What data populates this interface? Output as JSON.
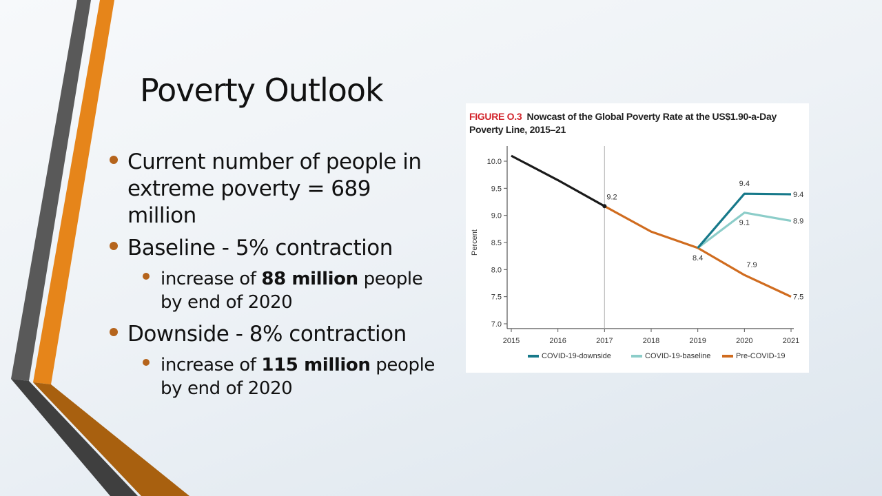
{
  "slide": {
    "title": "Poverty Outlook",
    "bullets": [
      {
        "level": 1,
        "text": "Current number of people in extreme poverty = 689 million"
      },
      {
        "level": 1,
        "text": "Baseline - 5% contraction"
      },
      {
        "level": 2,
        "pre": "increase of ",
        "bold": "88 million",
        "post": " people by end of 2020"
      },
      {
        "level": 1,
        "text": "Downside - 8% contraction"
      },
      {
        "level": 2,
        "pre": "increase of ",
        "bold": "115 million",
        "post": " people by end of 2020"
      }
    ],
    "colors": {
      "accent_orange": "#e6851a",
      "accent_dark_orange": "#a8600f",
      "accent_gray": "#595959",
      "accent_dark_gray": "#3f3f3f",
      "bullet": "#b5641c"
    }
  },
  "chart_data": {
    "type": "line",
    "figure_label": "FIGURE O.3",
    "title": "Nowcast of the Global Poverty Rate at the US$1.90-a-Day Poverty Line, 2015–21",
    "xlabel": "",
    "ylabel": "Percent",
    "x": [
      2015,
      2016,
      2017,
      2018,
      2019,
      2020,
      2021
    ],
    "x_tick_labels": [
      "2015",
      "2016",
      "2017",
      "2018",
      "2019",
      "2020",
      "2021"
    ],
    "y_ticks": [
      7.0,
      7.5,
      8.0,
      8.5,
      9.0,
      9.5,
      10.0
    ],
    "y_tick_labels": [
      "7.0",
      "7.5",
      "8.0",
      "8.5",
      "9.0",
      "9.5",
      "10.0"
    ],
    "ylim": [
      6.9,
      10.2
    ],
    "xlim": [
      2015,
      2021
    ],
    "grid": false,
    "vertical_marker_x": 2017,
    "legend_position": "bottom",
    "series": [
      {
        "name": "Historical",
        "in_legend": false,
        "color": "#1a1a1a",
        "x": [
          2015,
          2016,
          2017
        ],
        "values": [
          10.1,
          9.65,
          9.17
        ]
      },
      {
        "name": "Pre-COVID-19",
        "in_legend": true,
        "color": "#d06c1f",
        "x": [
          2017,
          2018,
          2019,
          2020,
          2021
        ],
        "values": [
          9.17,
          8.7,
          8.4,
          7.9,
          7.5
        ]
      },
      {
        "name": "COVID-19-downside",
        "in_legend": true,
        "color": "#17798a",
        "x": [
          2019,
          2020,
          2021
        ],
        "values": [
          8.4,
          9.4,
          9.39
        ]
      },
      {
        "name": "COVID-19-baseline",
        "in_legend": true,
        "color": "#8ccdc9",
        "x": [
          2019,
          2020,
          2021
        ],
        "values": [
          8.4,
          9.05,
          8.9
        ]
      }
    ],
    "legend_order": [
      "COVID-19-downside",
      "COVID-19-baseline",
      "Pre-COVID-19"
    ],
    "annotations": [
      {
        "text": "9.2",
        "x": 2017,
        "y": 9.17,
        "pos": "above-right"
      },
      {
        "text": "8.4",
        "x": 2019,
        "y": 8.4,
        "pos": "below"
      },
      {
        "text": "9.4",
        "x": 2020,
        "y": 9.4,
        "pos": "above"
      },
      {
        "text": "9.1",
        "x": 2020,
        "y": 9.05,
        "pos": "below"
      },
      {
        "text": "7.9",
        "x": 2020,
        "y": 7.9,
        "pos": "above-right"
      },
      {
        "text": "9.4",
        "x": 2021,
        "y": 9.39,
        "pos": "right"
      },
      {
        "text": "8.9",
        "x": 2021,
        "y": 8.9,
        "pos": "right"
      },
      {
        "text": "7.5",
        "x": 2021,
        "y": 7.5,
        "pos": "right"
      }
    ]
  }
}
